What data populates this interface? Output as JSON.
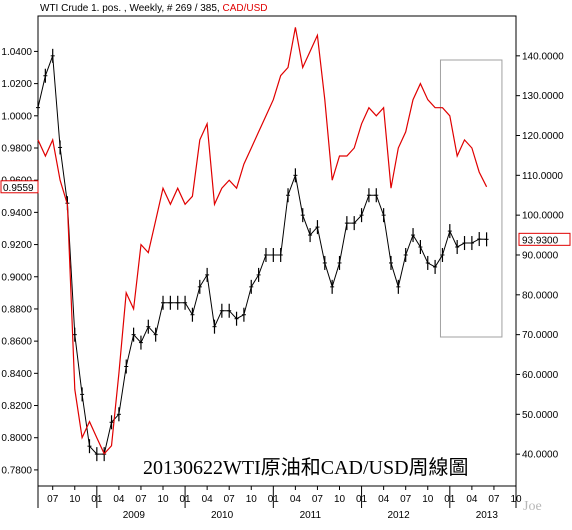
{
  "header": {
    "left_text": "WTI Crude 1. pos. , Weekly, # 269 / 385, ",
    "right_text": "CAD/USD"
  },
  "watermark": "20130622WTI原油和CAD/USD周線圖",
  "signature": "Joe",
  "chart_data": {
    "type": "line",
    "title": "",
    "colors": {
      "cad": "#e00000",
      "wti": "#000000",
      "box": "#a0a0a0"
    },
    "left_axis": {
      "series": "CAD/USD",
      "range": [
        0.77,
        1.062
      ],
      "ticks": [
        "1.0400",
        "1.0200",
        "1.0000",
        "0.9800",
        "0.9600",
        "0.9400",
        "0.9200",
        "0.9000",
        "0.8800",
        "0.8600",
        "0.8400",
        "0.8200",
        "0.8000",
        "0.7800"
      ],
      "last_value_label": "0.9559"
    },
    "right_axis": {
      "series": "WTI Crude",
      "range": [
        32,
        150
      ],
      "ticks": [
        "140.0000",
        "130.0000",
        "120.0000",
        "110.0000",
        "100.0000",
        "90.0000",
        "80.0000",
        "70.0000",
        "60.0000",
        "50.0000",
        "40.0000"
      ],
      "last_value_label": "93.9300"
    },
    "x_axis": {
      "month_labels": [
        "07",
        "10",
        "01",
        "04",
        "07",
        "10",
        "01",
        "04",
        "07",
        "10",
        "01",
        "04",
        "07",
        "10",
        "01",
        "04",
        "07",
        "10",
        "01",
        "04",
        "07",
        "10"
      ],
      "year_labels": [
        "2009",
        "2010",
        "2011",
        "2012",
        "2013"
      ],
      "range": [
        "2008-05",
        "2013-10"
      ]
    },
    "highlight_box": {
      "from": "2012-12",
      "to": "2013-07"
    },
    "series": [
      {
        "name": "CAD/USD",
        "x": [
          "2008-05",
          "2008-06",
          "2008-07",
          "2008-08",
          "2008-09",
          "2008-10",
          "2008-11",
          "2008-12",
          "2009-01",
          "2009-02",
          "2009-03",
          "2009-04",
          "2009-05",
          "2009-06",
          "2009-07",
          "2009-08",
          "2009-09",
          "2009-10",
          "2009-11",
          "2009-12",
          "2010-01",
          "2010-02",
          "2010-03",
          "2010-04",
          "2010-05",
          "2010-06",
          "2010-07",
          "2010-08",
          "2010-09",
          "2010-10",
          "2010-11",
          "2010-12",
          "2011-01",
          "2011-02",
          "2011-03",
          "2011-04",
          "2011-05",
          "2011-06",
          "2011-07",
          "2011-08",
          "2011-09",
          "2011-10",
          "2011-11",
          "2011-12",
          "2012-01",
          "2012-02",
          "2012-03",
          "2012-04",
          "2012-05",
          "2012-06",
          "2012-07",
          "2012-08",
          "2012-09",
          "2012-10",
          "2012-11",
          "2012-12",
          "2013-01",
          "2013-02",
          "2013-03",
          "2013-04",
          "2013-05",
          "2013-06"
        ],
        "values": [
          0.985,
          0.975,
          0.985,
          0.96,
          0.945,
          0.83,
          0.8,
          0.81,
          0.8,
          0.79,
          0.795,
          0.84,
          0.89,
          0.88,
          0.92,
          0.915,
          0.935,
          0.955,
          0.945,
          0.955,
          0.945,
          0.95,
          0.985,
          0.995,
          0.945,
          0.955,
          0.96,
          0.955,
          0.97,
          0.98,
          0.99,
          1.0,
          1.01,
          1.025,
          1.03,
          1.055,
          1.03,
          1.04,
          1.05,
          1.01,
          0.96,
          0.975,
          0.975,
          0.98,
          0.995,
          1.005,
          1.0,
          1.005,
          0.955,
          0.98,
          0.99,
          1.01,
          1.02,
          1.01,
          1.005,
          1.005,
          1.0,
          0.975,
          0.985,
          0.98,
          0.965,
          0.9559
        ]
      },
      {
        "name": "WTI Crude",
        "x": [
          "2008-05",
          "2008-06",
          "2008-07",
          "2008-08",
          "2008-09",
          "2008-10",
          "2008-11",
          "2008-12",
          "2009-01",
          "2009-02",
          "2009-03",
          "2009-04",
          "2009-05",
          "2009-06",
          "2009-07",
          "2009-08",
          "2009-09",
          "2009-10",
          "2009-11",
          "2009-12",
          "2010-01",
          "2010-02",
          "2010-03",
          "2010-04",
          "2010-05",
          "2010-06",
          "2010-07",
          "2010-08",
          "2010-09",
          "2010-10",
          "2010-11",
          "2010-12",
          "2011-01",
          "2011-02",
          "2011-03",
          "2011-04",
          "2011-05",
          "2011-06",
          "2011-07",
          "2011-08",
          "2011-09",
          "2011-10",
          "2011-11",
          "2011-12",
          "2012-01",
          "2012-02",
          "2012-03",
          "2012-04",
          "2012-05",
          "2012-06",
          "2012-07",
          "2012-08",
          "2012-09",
          "2012-10",
          "2012-11",
          "2012-12",
          "2013-01",
          "2013-02",
          "2013-03",
          "2013-04",
          "2013-05",
          "2013-06"
        ],
        "values": [
          127,
          135,
          140,
          117,
          103,
          70,
          55,
          42,
          40,
          40,
          48,
          50,
          62,
          70,
          68,
          72,
          70,
          78,
          78,
          78,
          78,
          75,
          82,
          85,
          72,
          76,
          76,
          74,
          75,
          82,
          85,
          90,
          90,
          90,
          105,
          110,
          100,
          95,
          97,
          88,
          82,
          88,
          98,
          98,
          100,
          105,
          105,
          100,
          88,
          82,
          90,
          95,
          92,
          88,
          87,
          90,
          96,
          92,
          93,
          93,
          94,
          93.93
        ]
      }
    ]
  }
}
